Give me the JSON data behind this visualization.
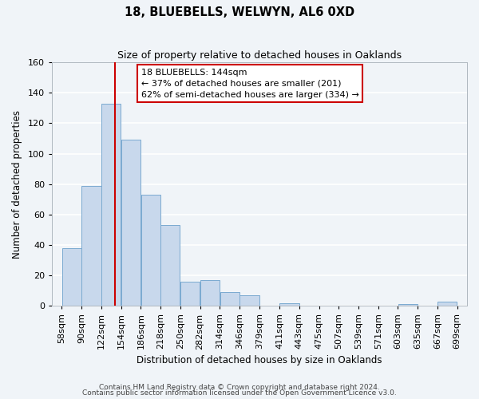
{
  "title": "18, BLUEBELLS, WELWYN, AL6 0XD",
  "subtitle": "Size of property relative to detached houses in Oaklands",
  "xlabel": "Distribution of detached houses by size in Oaklands",
  "ylabel": "Number of detached properties",
  "bar_color": "#c8d8ec",
  "bar_edge_color": "#7aaad0",
  "background_color": "#f0f4f8",
  "grid_color": "#ffffff",
  "bin_labels": [
    "58sqm",
    "90sqm",
    "122sqm",
    "154sqm",
    "186sqm",
    "218sqm",
    "250sqm",
    "282sqm",
    "314sqm",
    "346sqm",
    "379sqm",
    "411sqm",
    "443sqm",
    "475sqm",
    "507sqm",
    "539sqm",
    "571sqm",
    "603sqm",
    "635sqm",
    "667sqm",
    "699sqm"
  ],
  "bar_heights": [
    38,
    79,
    133,
    109,
    73,
    53,
    16,
    17,
    9,
    7,
    0,
    2,
    0,
    0,
    0,
    0,
    0,
    1,
    0,
    3,
    3
  ],
  "red_line_x": 144,
  "bin_edges": [
    58,
    90,
    122,
    154,
    186,
    218,
    250,
    282,
    314,
    346,
    379,
    411,
    443,
    475,
    507,
    539,
    571,
    603,
    635,
    667,
    699
  ],
  "ylim": [
    0,
    160
  ],
  "yticks": [
    0,
    20,
    40,
    60,
    80,
    100,
    120,
    140,
    160
  ],
  "annotation_line1": "18 BLUEBELLS: 144sqm",
  "annotation_line2": "← 37% of detached houses are smaller (201)",
  "annotation_line3": "62% of semi-detached houses are larger (334) →",
  "annotation_box_color": "#ffffff",
  "annotation_box_edge": "#cc0000",
  "footer_line1": "Contains HM Land Registry data © Crown copyright and database right 2024.",
  "footer_line2": "Contains public sector information licensed under the Open Government Licence v3.0.",
  "title_fontsize": 10.5,
  "subtitle_fontsize": 9,
  "axis_label_fontsize": 8.5,
  "tick_fontsize": 8,
  "annotation_fontsize": 8,
  "footer_fontsize": 6.5
}
